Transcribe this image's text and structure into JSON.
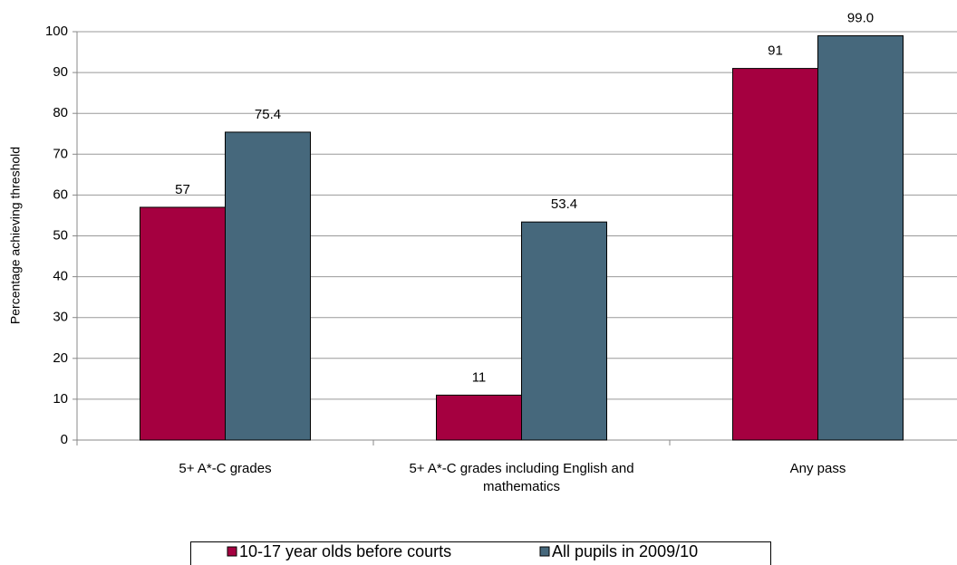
{
  "chart_data": {
    "type": "bar",
    "y_label": "Percentage achieving threshold",
    "categories": [
      "5+ A*-C grades",
      "5+ A*-C grades including English and mathematics",
      "Any pass"
    ],
    "series": [
      {
        "name": "10-17 year olds before courts",
        "color": "#a50040",
        "values": [
          57,
          11,
          91
        ]
      },
      {
        "name": "All pupils in 2009/10",
        "color": "#46687c",
        "values": [
          75.4,
          53.4,
          99.0
        ],
        "value_labels": [
          "75.4",
          "53.4",
          "99.0"
        ]
      }
    ],
    "ylim": [
      0,
      100
    ],
    "yticks": [
      0,
      10,
      20,
      30,
      40,
      50,
      60,
      70,
      80,
      90,
      100
    ],
    "grid": true,
    "legend": "bottom"
  }
}
